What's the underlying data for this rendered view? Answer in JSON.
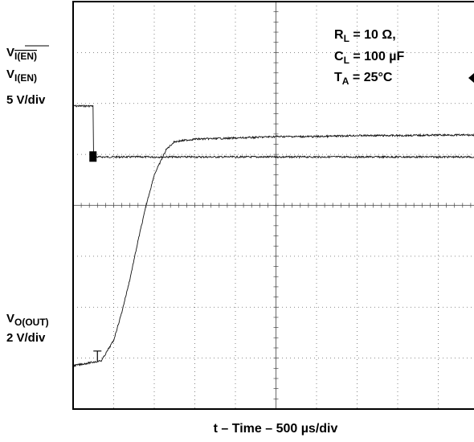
{
  "chart_data": {
    "type": "line",
    "title": "",
    "xlabel": "t – Time – 500 µs/div",
    "x_unit": "µs",
    "x_div_us": 500,
    "x_divisions": 10,
    "y_divisions": 8,
    "grid": true,
    "conditions": {
      "rl": {
        "main": "R",
        "sub": "L",
        "rest": " = 10 Ω,"
      },
      "cl": {
        "main": "C",
        "sub": "L",
        "rest": " = 100 µF"
      },
      "ta": {
        "main": "T",
        "sub": "A",
        "rest": " = 25°C"
      }
    },
    "channels": [
      {
        "label_lines": [
          {
            "main": "V",
            "sub": "I(EN)",
            "overline": true
          },
          {
            "main": "V",
            "sub": "I(EN)",
            "overline": false
          },
          {
            "main": "5 V/div"
          }
        ],
        "scale": "5 V/div",
        "x": [
          0,
          250,
          251,
          500,
          1000,
          1500,
          2000,
          2500,
          3000,
          3500,
          4000,
          4500,
          5000
        ],
        "y_div": [
          5.95,
          5.95,
          4.95,
          4.95,
          4.95,
          4.95,
          4.95,
          4.95,
          4.95,
          4.95,
          4.95,
          4.95,
          4.95
        ]
      },
      {
        "label_lines": [
          {
            "main": "V",
            "sub": "O(OUT)",
            "overline": false
          },
          {
            "main": "2 V/div"
          }
        ],
        "scale": "2 V/div",
        "x": [
          0,
          350,
          500,
          600,
          700,
          800,
          900,
          1000,
          1150,
          1250,
          1500,
          2000,
          2500,
          3000,
          3500,
          4000,
          4500,
          5000
        ],
        "y_div": [
          0.85,
          0.95,
          1.35,
          1.9,
          2.55,
          3.3,
          4.0,
          4.6,
          5.1,
          5.25,
          5.3,
          5.32,
          5.35,
          5.35,
          5.37,
          5.37,
          5.38,
          5.38
        ]
      }
    ]
  }
}
